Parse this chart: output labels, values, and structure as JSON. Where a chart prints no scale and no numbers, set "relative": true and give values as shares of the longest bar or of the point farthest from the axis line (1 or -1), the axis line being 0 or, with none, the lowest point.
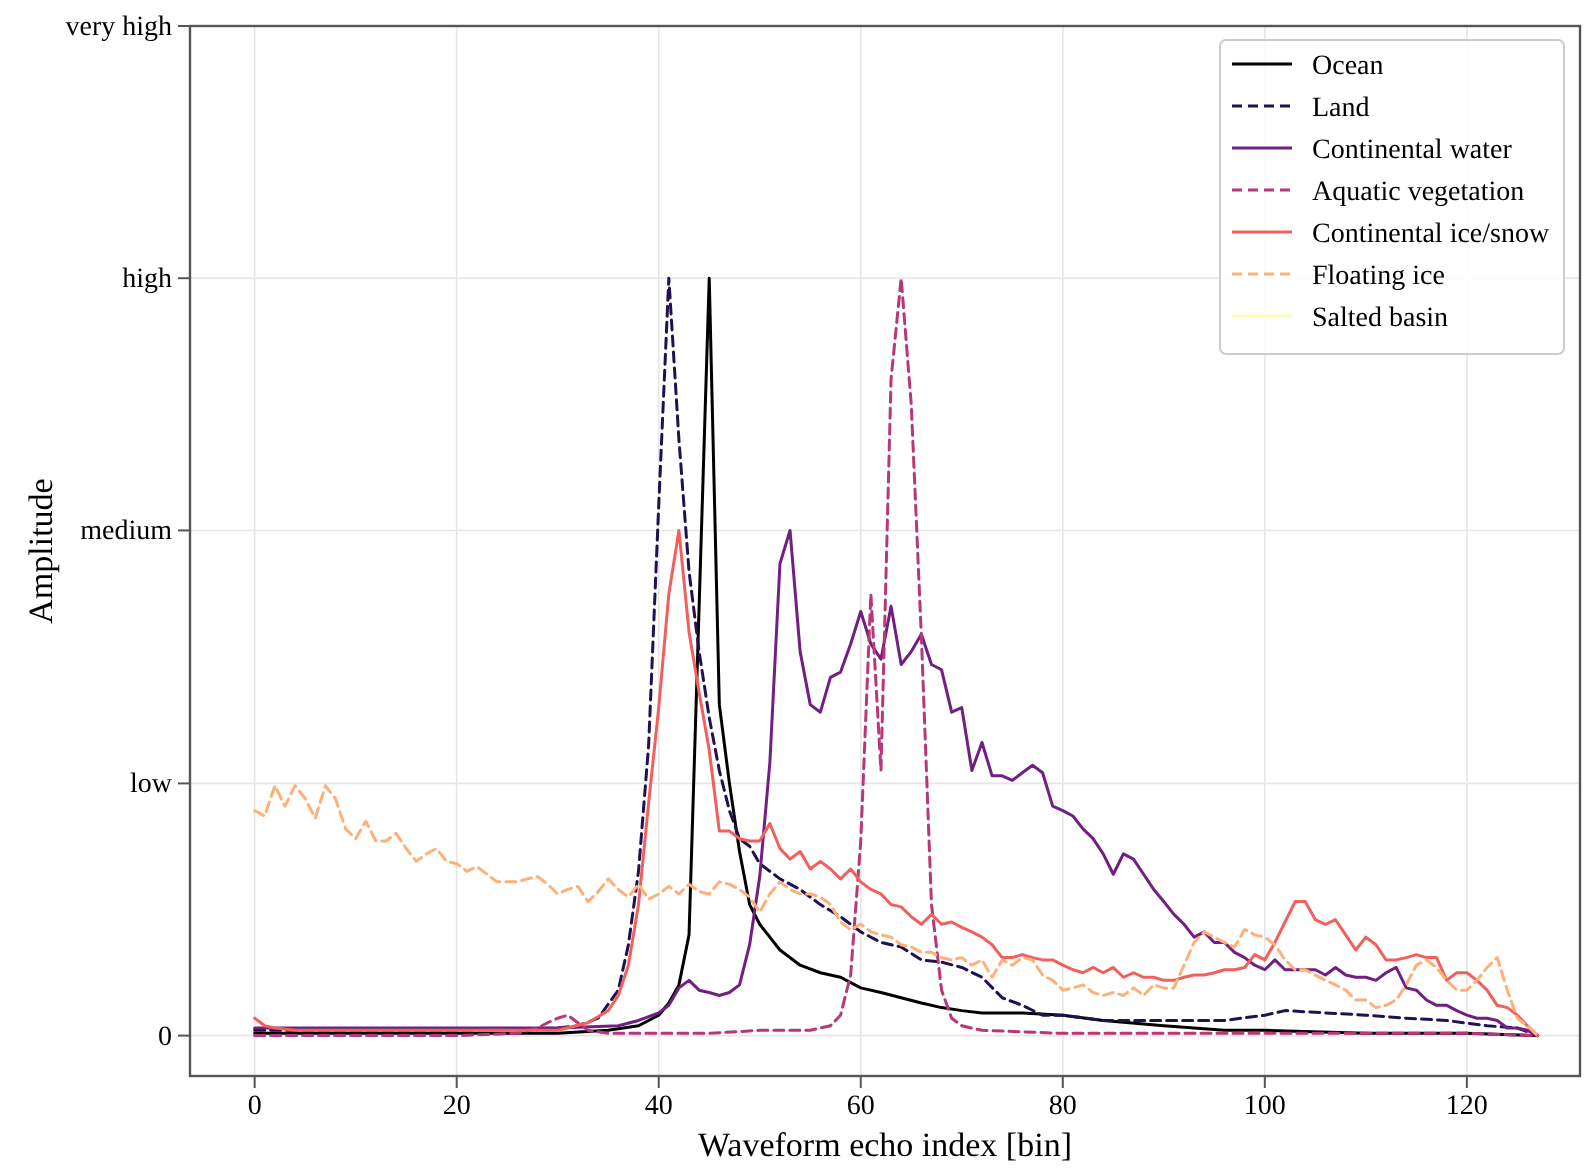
{
  "chart_data": {
    "type": "line",
    "relative": true,
    "xlabel": "Waveform echo index [bin]",
    "ylabel": "Amplitude",
    "xlim": [
      -6.4,
      131.2
    ],
    "xticks": [
      0,
      20,
      40,
      60,
      80,
      100,
      120
    ],
    "ref_lines": [
      {
        "axis": "y",
        "value": 0,
        "label": "0"
      },
      {
        "axis": "y",
        "value": 0.333,
        "label": "low"
      },
      {
        "axis": "y",
        "value": 0.667,
        "label": "medium"
      },
      {
        "axis": "y",
        "value": 1,
        "label": "high"
      },
      {
        "axis": "y",
        "value": 1.333,
        "label": "very high"
      }
    ],
    "grid": "x",
    "legend": "top right",
    "series": [
      {
        "name": "Ocean",
        "color": "#000000",
        "line_style": "solid",
        "x": [
          0,
          10,
          20,
          30,
          35,
          38,
          40,
          41,
          42,
          43,
          44,
          45,
          46,
          47,
          48,
          49,
          50,
          51,
          52,
          54,
          56,
          58,
          60,
          62,
          64,
          66,
          68,
          70,
          72,
          76,
          80,
          84,
          90,
          96,
          100,
          110,
          120,
          127
        ],
        "values": [
          0.003,
          0.003,
          0.003,
          0.003,
          0.007,
          0.013,
          0.027,
          0.043,
          0.067,
          0.133,
          0.567,
          1,
          0.437,
          0.333,
          0.243,
          0.173,
          0.147,
          0.13,
          0.113,
          0.093,
          0.083,
          0.077,
          0.063,
          0.057,
          0.05,
          0.043,
          0.037,
          0.033,
          0.03,
          0.03,
          0.027,
          0.02,
          0.013,
          0.007,
          0.007,
          0.003,
          0.003,
          0
        ]
      },
      {
        "name": "Land",
        "color": "#221150",
        "line_style": "dashed",
        "x": [
          0,
          10,
          20,
          30,
          32,
          34,
          36,
          37,
          38,
          39,
          40,
          41,
          42,
          43,
          44,
          45,
          46,
          47,
          48,
          49,
          50,
          52,
          54,
          56,
          58,
          60,
          62,
          64,
          66,
          68,
          70,
          72,
          74,
          76,
          78,
          80,
          84,
          88,
          92,
          96,
          100,
          102,
          106,
          110,
          114,
          118,
          122,
          125,
          127
        ],
        "values": [
          0.007,
          0.007,
          0.007,
          0.01,
          0.013,
          0.023,
          0.06,
          0.12,
          0.217,
          0.383,
          0.7,
          1,
          0.787,
          0.613,
          0.507,
          0.42,
          0.35,
          0.297,
          0.26,
          0.25,
          0.227,
          0.207,
          0.193,
          0.173,
          0.157,
          0.137,
          0.123,
          0.117,
          0.1,
          0.097,
          0.09,
          0.077,
          0.05,
          0.04,
          0.027,
          0.027,
          0.02,
          0.02,
          0.02,
          0.02,
          0.027,
          0.033,
          0.03,
          0.027,
          0.023,
          0.02,
          0.013,
          0.01,
          0
        ]
      },
      {
        "name": "Continental water",
        "color": "#711f81",
        "line_style": "solid",
        "x": [
          0,
          10,
          20,
          30,
          36,
          38,
          40,
          41,
          42,
          43,
          44,
          45,
          46,
          47,
          48,
          49,
          50,
          51,
          52,
          53,
          54,
          55,
          56,
          57,
          58,
          59,
          60,
          61,
          62,
          63,
          64,
          65,
          66,
          67,
          68,
          69,
          70,
          71,
          72,
          73,
          74,
          75,
          76,
          77,
          78,
          79,
          80,
          81,
          82,
          83,
          84,
          85,
          86,
          87,
          88,
          89,
          90,
          91,
          92,
          93,
          94,
          95,
          96,
          97,
          98,
          99,
          100,
          101,
          102,
          103,
          104,
          105,
          106,
          107,
          108,
          109,
          110,
          111,
          112,
          113,
          114,
          115,
          116,
          117,
          118,
          119,
          120,
          121,
          122,
          123,
          124,
          125,
          126,
          127
        ],
        "values": [
          0.01,
          0.01,
          0.01,
          0.01,
          0.013,
          0.02,
          0.03,
          0.04,
          0.063,
          0.073,
          0.06,
          0.057,
          0.053,
          0.057,
          0.067,
          0.12,
          0.21,
          0.36,
          0.623,
          0.667,
          0.507,
          0.437,
          0.427,
          0.473,
          0.48,
          0.517,
          0.56,
          0.517,
          0.497,
          0.567,
          0.49,
          0.507,
          0.53,
          0.49,
          0.483,
          0.427,
          0.433,
          0.35,
          0.387,
          0.343,
          0.343,
          0.337,
          0.347,
          0.357,
          0.347,
          0.303,
          0.297,
          0.29,
          0.273,
          0.26,
          0.24,
          0.213,
          0.24,
          0.233,
          0.213,
          0.193,
          0.177,
          0.16,
          0.147,
          0.13,
          0.137,
          0.123,
          0.123,
          0.11,
          0.103,
          0.093,
          0.087,
          0.1,
          0.087,
          0.087,
          0.087,
          0.087,
          0.08,
          0.09,
          0.08,
          0.077,
          0.077,
          0.073,
          0.083,
          0.09,
          0.063,
          0.06,
          0.047,
          0.04,
          0.04,
          0.033,
          0.027,
          0.023,
          0.023,
          0.02,
          0.01,
          0.01,
          0.007,
          0
        ]
      },
      {
        "name": "Aquatic vegetation",
        "color": "#b73779",
        "line_style": "dashed",
        "x": [
          0,
          10,
          20,
          26,
          28,
          29,
          30,
          31,
          32,
          33,
          35,
          40,
          45,
          50,
          55,
          56,
          57,
          58,
          59,
          60,
          61,
          62,
          63,
          64,
          65,
          66,
          67,
          68,
          69,
          70,
          72,
          80,
          90,
          100,
          110,
          120,
          127
        ],
        "values": [
          0,
          0,
          0,
          0.003,
          0.01,
          0.017,
          0.023,
          0.027,
          0.017,
          0.007,
          0.003,
          0.003,
          0.003,
          0.007,
          0.007,
          0.01,
          0.013,
          0.027,
          0.08,
          0.257,
          0.583,
          0.35,
          0.867,
          1,
          0.833,
          0.527,
          0.173,
          0.06,
          0.023,
          0.013,
          0.007,
          0.003,
          0.003,
          0.003,
          0.003,
          0.003,
          0
        ]
      },
      {
        "name": "Continental ice/snow",
        "color": "#f1605d",
        "line_style": "solid",
        "x": [
          0,
          1,
          2,
          4,
          10,
          20,
          30,
          33,
          35,
          36,
          37,
          38,
          39,
          40,
          41,
          42,
          43,
          44,
          45,
          46,
          47,
          48,
          49,
          50,
          51,
          52,
          53,
          54,
          55,
          56,
          57,
          58,
          59,
          60,
          61,
          62,
          63,
          64,
          65,
          66,
          67,
          68,
          69,
          70,
          71,
          72,
          73,
          74,
          75,
          76,
          77,
          78,
          79,
          80,
          81,
          82,
          83,
          84,
          85,
          86,
          87,
          88,
          89,
          90,
          91,
          92,
          93,
          94,
          95,
          96,
          97,
          98,
          99,
          100,
          101,
          102,
          103,
          104,
          105,
          106,
          107,
          108,
          109,
          110,
          111,
          112,
          113,
          114,
          115,
          116,
          117,
          118,
          119,
          120,
          121,
          122,
          123,
          124,
          125,
          126,
          127
        ],
        "values": [
          0.023,
          0.013,
          0.01,
          0.007,
          0.007,
          0.007,
          0.007,
          0.017,
          0.033,
          0.053,
          0.093,
          0.173,
          0.307,
          0.433,
          0.583,
          0.667,
          0.533,
          0.453,
          0.377,
          0.27,
          0.27,
          0.26,
          0.257,
          0.257,
          0.28,
          0.247,
          0.233,
          0.243,
          0.22,
          0.23,
          0.22,
          0.207,
          0.22,
          0.203,
          0.193,
          0.187,
          0.173,
          0.17,
          0.157,
          0.147,
          0.16,
          0.147,
          0.15,
          0.143,
          0.137,
          0.13,
          0.12,
          0.103,
          0.103,
          0.107,
          0.103,
          0.1,
          0.1,
          0.093,
          0.087,
          0.083,
          0.09,
          0.083,
          0.09,
          0.077,
          0.083,
          0.077,
          0.077,
          0.073,
          0.073,
          0.077,
          0.08,
          0.08,
          0.083,
          0.087,
          0.087,
          0.09,
          0.107,
          0.1,
          0.123,
          0.15,
          0.177,
          0.177,
          0.153,
          0.147,
          0.153,
          0.133,
          0.113,
          0.13,
          0.12,
          0.1,
          0.1,
          0.103,
          0.107,
          0.103,
          0.103,
          0.073,
          0.083,
          0.083,
          0.073,
          0.06,
          0.04,
          0.037,
          0.027,
          0.013,
          0
        ]
      },
      {
        "name": "Floating ice",
        "color": "#feb078",
        "line_style": "dashed",
        "x": [
          0,
          1,
          2,
          3,
          4,
          5,
          6,
          7,
          8,
          9,
          10,
          11,
          12,
          13,
          14,
          15,
          16,
          17,
          18,
          19,
          20,
          21,
          22,
          23,
          24,
          25,
          26,
          27,
          28,
          29,
          30,
          31,
          32,
          33,
          34,
          35,
          36,
          37,
          38,
          39,
          40,
          41,
          42,
          43,
          44,
          45,
          46,
          47,
          48,
          49,
          50,
          51,
          52,
          53,
          54,
          55,
          56,
          57,
          58,
          59,
          60,
          61,
          62,
          63,
          64,
          65,
          66,
          67,
          68,
          69,
          70,
          71,
          72,
          73,
          74,
          75,
          76,
          77,
          78,
          79,
          80,
          81,
          82,
          83,
          84,
          85,
          86,
          87,
          88,
          89,
          90,
          91,
          92,
          93,
          94,
          95,
          96,
          97,
          98,
          99,
          100,
          101,
          102,
          103,
          104,
          105,
          106,
          107,
          108,
          109,
          110,
          111,
          112,
          113,
          114,
          115,
          116,
          117,
          118,
          119,
          120,
          121,
          122,
          123,
          124,
          125,
          126,
          127
        ],
        "values": [
          0.297,
          0.29,
          0.33,
          0.303,
          0.33,
          0.313,
          0.287,
          0.33,
          0.313,
          0.273,
          0.26,
          0.283,
          0.257,
          0.257,
          0.267,
          0.247,
          0.23,
          0.24,
          0.247,
          0.23,
          0.227,
          0.217,
          0.223,
          0.213,
          0.203,
          0.203,
          0.203,
          0.207,
          0.21,
          0.2,
          0.187,
          0.193,
          0.197,
          0.177,
          0.19,
          0.207,
          0.193,
          0.183,
          0.2,
          0.18,
          0.187,
          0.197,
          0.187,
          0.2,
          0.19,
          0.187,
          0.203,
          0.2,
          0.193,
          0.183,
          0.163,
          0.187,
          0.203,
          0.193,
          0.187,
          0.187,
          0.183,
          0.173,
          0.15,
          0.14,
          0.147,
          0.137,
          0.133,
          0.13,
          0.12,
          0.117,
          0.11,
          0.11,
          0.103,
          0.1,
          0.103,
          0.093,
          0.1,
          0.077,
          0.1,
          0.093,
          0.103,
          0.1,
          0.08,
          0.073,
          0.06,
          0.063,
          0.067,
          0.057,
          0.053,
          0.057,
          0.053,
          0.063,
          0.053,
          0.067,
          0.063,
          0.063,
          0.093,
          0.123,
          0.137,
          0.13,
          0.123,
          0.117,
          0.14,
          0.133,
          0.13,
          0.12,
          0.1,
          0.087,
          0.087,
          0.08,
          0.073,
          0.067,
          0.06,
          0.047,
          0.047,
          0.037,
          0.04,
          0.047,
          0.067,
          0.093,
          0.1,
          0.09,
          0.073,
          0.06,
          0.06,
          0.073,
          0.09,
          0.103,
          0.06,
          0.023,
          0.013,
          0
        ]
      },
      {
        "name": "Salted basin",
        "color": "#fcfdbf",
        "line_style": "solid"
      }
    ]
  }
}
